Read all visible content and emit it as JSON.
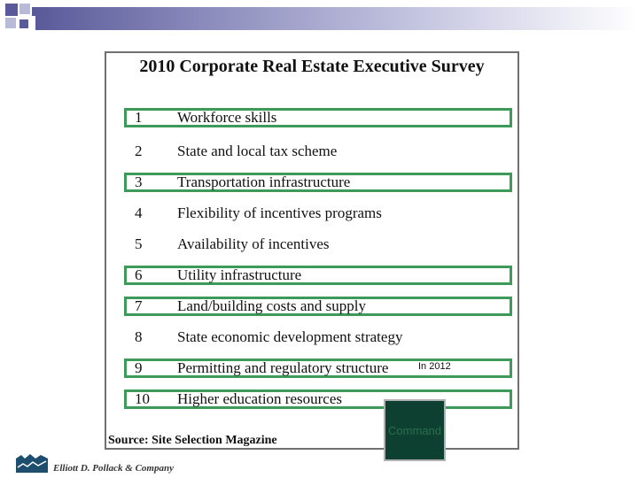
{
  "slide": {
    "title": "2010 Corporate Real Estate Executive Survey",
    "rows": [
      {
        "rank": "1",
        "text": "Workforce skills",
        "highlighted": true
      },
      {
        "rank": "2",
        "text": "State and local tax scheme",
        "highlighted": false
      },
      {
        "rank": "3",
        "text": "Transportation infrastructure",
        "highlighted": true
      },
      {
        "rank": "4",
        "text": "Flexibility of incentives programs",
        "highlighted": false
      },
      {
        "rank": "5",
        "text": "Availability of incentives",
        "highlighted": false
      },
      {
        "rank": "6",
        "text": "Utility infrastructure",
        "highlighted": true
      },
      {
        "rank": "7",
        "text": "Land/building costs and supply",
        "highlighted": true
      },
      {
        "rank": "8",
        "text": "State economic development strategy",
        "highlighted": false
      },
      {
        "rank": "9",
        "text": "Permitting and regulatory structure",
        "highlighted": true
      },
      {
        "rank": "10",
        "text": "Higher education resources",
        "highlighted": true
      }
    ],
    "source": "Source:  Site Selection Magazine",
    "note": "In 2012",
    "command_button": "Command",
    "company": "Elliott D. Pollack & Company"
  },
  "colors": {
    "highlight_border": "#3e9a58",
    "header_accent": "#5a5a9a",
    "command_bg": "#0d4030"
  }
}
